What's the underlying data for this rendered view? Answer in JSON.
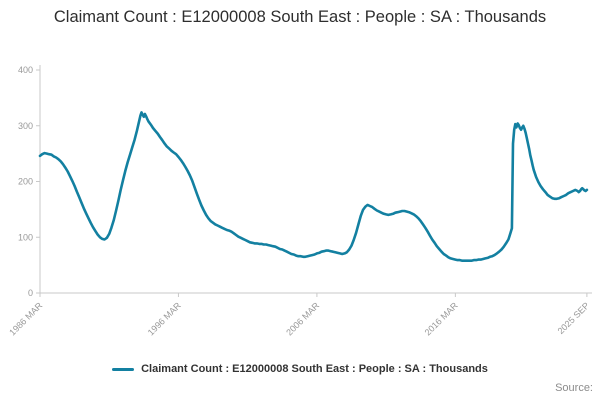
{
  "page": {
    "source_label": "Source:"
  },
  "chart_data": {
    "type": "line",
    "title": "Claimant Count : E12000008 South East : People : SA : Thousands",
    "xlabel": "",
    "ylabel": "",
    "units": "Thousands",
    "ylim": [
      0,
      400
    ],
    "yticks": [
      0,
      100,
      200,
      300,
      400
    ],
    "x_range": [
      1986.17,
      2025.75
    ],
    "xticks": [
      {
        "x": 1986.17,
        "label": "1986 MAR"
      },
      {
        "x": 1996.17,
        "label": "1996 MAR"
      },
      {
        "x": 2006.17,
        "label": "2006 MAR"
      },
      {
        "x": 2016.17,
        "label": "2016 MAR"
      },
      {
        "x": 2025.67,
        "label": "2025 SEP"
      }
    ],
    "grid": false,
    "legend_position": "bottom",
    "colors": {
      "line": "#1380A1",
      "axis": "#c9c9c9",
      "tick_label": "#999999",
      "title_text": "#2e2e2e",
      "legend_text": "#333333",
      "source_text": "#8c8c8c"
    },
    "series": [
      {
        "name": "Claimant Count : E12000008 South East : People : SA : Thousands",
        "color": "#1380A1",
        "points": [
          [
            1986.17,
            246
          ],
          [
            1986.33,
            249
          ],
          [
            1986.5,
            251
          ],
          [
            1986.67,
            250
          ],
          [
            1986.83,
            249
          ],
          [
            1987.0,
            248
          ],
          [
            1987.17,
            245
          ],
          [
            1987.33,
            243
          ],
          [
            1987.5,
            240
          ],
          [
            1987.67,
            236
          ],
          [
            1987.83,
            231
          ],
          [
            1988.0,
            225
          ],
          [
            1988.17,
            218
          ],
          [
            1988.33,
            210
          ],
          [
            1988.5,
            201
          ],
          [
            1988.67,
            192
          ],
          [
            1988.83,
            182
          ],
          [
            1989.0,
            172
          ],
          [
            1989.17,
            162
          ],
          [
            1989.33,
            152
          ],
          [
            1989.5,
            143
          ],
          [
            1989.67,
            134
          ],
          [
            1989.83,
            126
          ],
          [
            1990.0,
            118
          ],
          [
            1990.17,
            111
          ],
          [
            1990.33,
            105
          ],
          [
            1990.5,
            100
          ],
          [
            1990.67,
            97
          ],
          [
            1990.83,
            96
          ],
          [
            1991.0,
            99
          ],
          [
            1991.17,
            106
          ],
          [
            1991.33,
            117
          ],
          [
            1991.5,
            131
          ],
          [
            1991.67,
            148
          ],
          [
            1991.83,
            166
          ],
          [
            1992.0,
            185
          ],
          [
            1992.17,
            203
          ],
          [
            1992.33,
            219
          ],
          [
            1992.5,
            234
          ],
          [
            1992.67,
            248
          ],
          [
            1992.83,
            261
          ],
          [
            1993.0,
            275
          ],
          [
            1993.17,
            291
          ],
          [
            1993.33,
            308
          ],
          [
            1993.42,
            318
          ],
          [
            1993.5,
            324
          ],
          [
            1993.58,
            320
          ],
          [
            1993.67,
            316
          ],
          [
            1993.75,
            321
          ],
          [
            1993.83,
            317
          ],
          [
            1993.92,
            312
          ],
          [
            1994.0,
            308
          ],
          [
            1994.17,
            302
          ],
          [
            1994.33,
            296
          ],
          [
            1994.5,
            291
          ],
          [
            1994.67,
            286
          ],
          [
            1994.83,
            280
          ],
          [
            1995.0,
            274
          ],
          [
            1995.17,
            268
          ],
          [
            1995.33,
            263
          ],
          [
            1995.5,
            259
          ],
          [
            1995.67,
            255
          ],
          [
            1995.83,
            252
          ],
          [
            1996.0,
            249
          ],
          [
            1996.17,
            244
          ],
          [
            1996.33,
            239
          ],
          [
            1996.5,
            233
          ],
          [
            1996.67,
            226
          ],
          [
            1996.83,
            219
          ],
          [
            1997.0,
            211
          ],
          [
            1997.17,
            201
          ],
          [
            1997.33,
            190
          ],
          [
            1997.5,
            178
          ],
          [
            1997.67,
            167
          ],
          [
            1997.83,
            157
          ],
          [
            1998.0,
            148
          ],
          [
            1998.17,
            140
          ],
          [
            1998.33,
            134
          ],
          [
            1998.5,
            129
          ],
          [
            1998.67,
            126
          ],
          [
            1998.83,
            123
          ],
          [
            1999.0,
            121
          ],
          [
            1999.17,
            119
          ],
          [
            1999.33,
            117
          ],
          [
            1999.5,
            115
          ],
          [
            1999.67,
            113
          ],
          [
            1999.83,
            112
          ],
          [
            2000.0,
            110
          ],
          [
            2000.17,
            107
          ],
          [
            2000.33,
            104
          ],
          [
            2000.5,
            101
          ],
          [
            2000.67,
            99
          ],
          [
            2000.83,
            97
          ],
          [
            2001.0,
            95
          ],
          [
            2001.17,
            93
          ],
          [
            2001.33,
            91
          ],
          [
            2001.5,
            90
          ],
          [
            2001.67,
            89
          ],
          [
            2001.83,
            89
          ],
          [
            2002.0,
            88
          ],
          [
            2002.17,
            88
          ],
          [
            2002.33,
            87
          ],
          [
            2002.5,
            87
          ],
          [
            2002.67,
            86
          ],
          [
            2002.83,
            85
          ],
          [
            2003.0,
            84
          ],
          [
            2003.17,
            83
          ],
          [
            2003.33,
            81
          ],
          [
            2003.5,
            79
          ],
          [
            2003.67,
            78
          ],
          [
            2003.83,
            76
          ],
          [
            2004.0,
            74
          ],
          [
            2004.17,
            72
          ],
          [
            2004.33,
            70
          ],
          [
            2004.5,
            69
          ],
          [
            2004.67,
            67
          ],
          [
            2004.83,
            66
          ],
          [
            2005.0,
            66
          ],
          [
            2005.17,
            65
          ],
          [
            2005.33,
            65
          ],
          [
            2005.5,
            66
          ],
          [
            2005.67,
            67
          ],
          [
            2005.83,
            68
          ],
          [
            2006.0,
            69
          ],
          [
            2006.17,
            71
          ],
          [
            2006.33,
            72
          ],
          [
            2006.5,
            74
          ],
          [
            2006.67,
            75
          ],
          [
            2006.83,
            76
          ],
          [
            2007.0,
            76
          ],
          [
            2007.17,
            75
          ],
          [
            2007.33,
            74
          ],
          [
            2007.5,
            73
          ],
          [
            2007.67,
            72
          ],
          [
            2007.83,
            71
          ],
          [
            2008.0,
            70
          ],
          [
            2008.17,
            71
          ],
          [
            2008.33,
            73
          ],
          [
            2008.5,
            78
          ],
          [
            2008.67,
            85
          ],
          [
            2008.83,
            95
          ],
          [
            2009.0,
            108
          ],
          [
            2009.17,
            123
          ],
          [
            2009.33,
            138
          ],
          [
            2009.5,
            149
          ],
          [
            2009.67,
            155
          ],
          [
            2009.83,
            158
          ],
          [
            2010.0,
            156
          ],
          [
            2010.17,
            154
          ],
          [
            2010.33,
            151
          ],
          [
            2010.5,
            148
          ],
          [
            2010.67,
            146
          ],
          [
            2010.83,
            144
          ],
          [
            2011.0,
            142
          ],
          [
            2011.17,
            141
          ],
          [
            2011.33,
            140
          ],
          [
            2011.5,
            141
          ],
          [
            2011.67,
            142
          ],
          [
            2011.83,
            144
          ],
          [
            2012.0,
            145
          ],
          [
            2012.17,
            146
          ],
          [
            2012.33,
            147
          ],
          [
            2012.5,
            147
          ],
          [
            2012.67,
            146
          ],
          [
            2012.83,
            145
          ],
          [
            2013.0,
            143
          ],
          [
            2013.17,
            141
          ],
          [
            2013.33,
            138
          ],
          [
            2013.5,
            134
          ],
          [
            2013.67,
            129
          ],
          [
            2013.83,
            123
          ],
          [
            2014.0,
            117
          ],
          [
            2014.17,
            110
          ],
          [
            2014.33,
            103
          ],
          [
            2014.5,
            96
          ],
          [
            2014.67,
            90
          ],
          [
            2014.83,
            84
          ],
          [
            2015.0,
            79
          ],
          [
            2015.17,
            74
          ],
          [
            2015.33,
            70
          ],
          [
            2015.5,
            67
          ],
          [
            2015.67,
            64
          ],
          [
            2015.83,
            62
          ],
          [
            2016.0,
            61
          ],
          [
            2016.17,
            60
          ],
          [
            2016.33,
            59
          ],
          [
            2016.5,
            59
          ],
          [
            2016.67,
            58
          ],
          [
            2016.83,
            58
          ],
          [
            2017.0,
            58
          ],
          [
            2017.17,
            58
          ],
          [
            2017.33,
            58
          ],
          [
            2017.5,
            59
          ],
          [
            2017.67,
            59
          ],
          [
            2017.83,
            60
          ],
          [
            2018.0,
            60
          ],
          [
            2018.17,
            61
          ],
          [
            2018.33,
            62
          ],
          [
            2018.5,
            63
          ],
          [
            2018.67,
            65
          ],
          [
            2018.83,
            66
          ],
          [
            2019.0,
            68
          ],
          [
            2019.17,
            71
          ],
          [
            2019.33,
            74
          ],
          [
            2019.5,
            78
          ],
          [
            2019.67,
            83
          ],
          [
            2019.83,
            89
          ],
          [
            2020.0,
            96
          ],
          [
            2020.08,
            102
          ],
          [
            2020.17,
            109
          ],
          [
            2020.25,
            116
          ],
          [
            2020.33,
            268
          ],
          [
            2020.42,
            293
          ],
          [
            2020.5,
            303
          ],
          [
            2020.58,
            297
          ],
          [
            2020.67,
            304
          ],
          [
            2020.75,
            301
          ],
          [
            2020.83,
            296
          ],
          [
            2020.92,
            293
          ],
          [
            2021.0,
            297
          ],
          [
            2021.08,
            300
          ],
          [
            2021.17,
            294
          ],
          [
            2021.25,
            287
          ],
          [
            2021.33,
            278
          ],
          [
            2021.42,
            268
          ],
          [
            2021.5,
            258
          ],
          [
            2021.58,
            247
          ],
          [
            2021.67,
            238
          ],
          [
            2021.75,
            229
          ],
          [
            2021.83,
            221
          ],
          [
            2021.92,
            214
          ],
          [
            2022.0,
            208
          ],
          [
            2022.17,
            199
          ],
          [
            2022.33,
            192
          ],
          [
            2022.5,
            186
          ],
          [
            2022.67,
            181
          ],
          [
            2022.83,
            176
          ],
          [
            2023.0,
            173
          ],
          [
            2023.17,
            170
          ],
          [
            2023.33,
            169
          ],
          [
            2023.5,
            169
          ],
          [
            2023.67,
            170
          ],
          [
            2023.83,
            172
          ],
          [
            2024.0,
            174
          ],
          [
            2024.17,
            176
          ],
          [
            2024.33,
            179
          ],
          [
            2024.5,
            181
          ],
          [
            2024.67,
            183
          ],
          [
            2024.83,
            185
          ],
          [
            2025.0,
            183
          ],
          [
            2025.08,
            181
          ],
          [
            2025.17,
            183
          ],
          [
            2025.25,
            186
          ],
          [
            2025.33,
            188
          ],
          [
            2025.42,
            186
          ],
          [
            2025.5,
            184
          ],
          [
            2025.58,
            183
          ],
          [
            2025.67,
            185
          ]
        ]
      }
    ]
  }
}
